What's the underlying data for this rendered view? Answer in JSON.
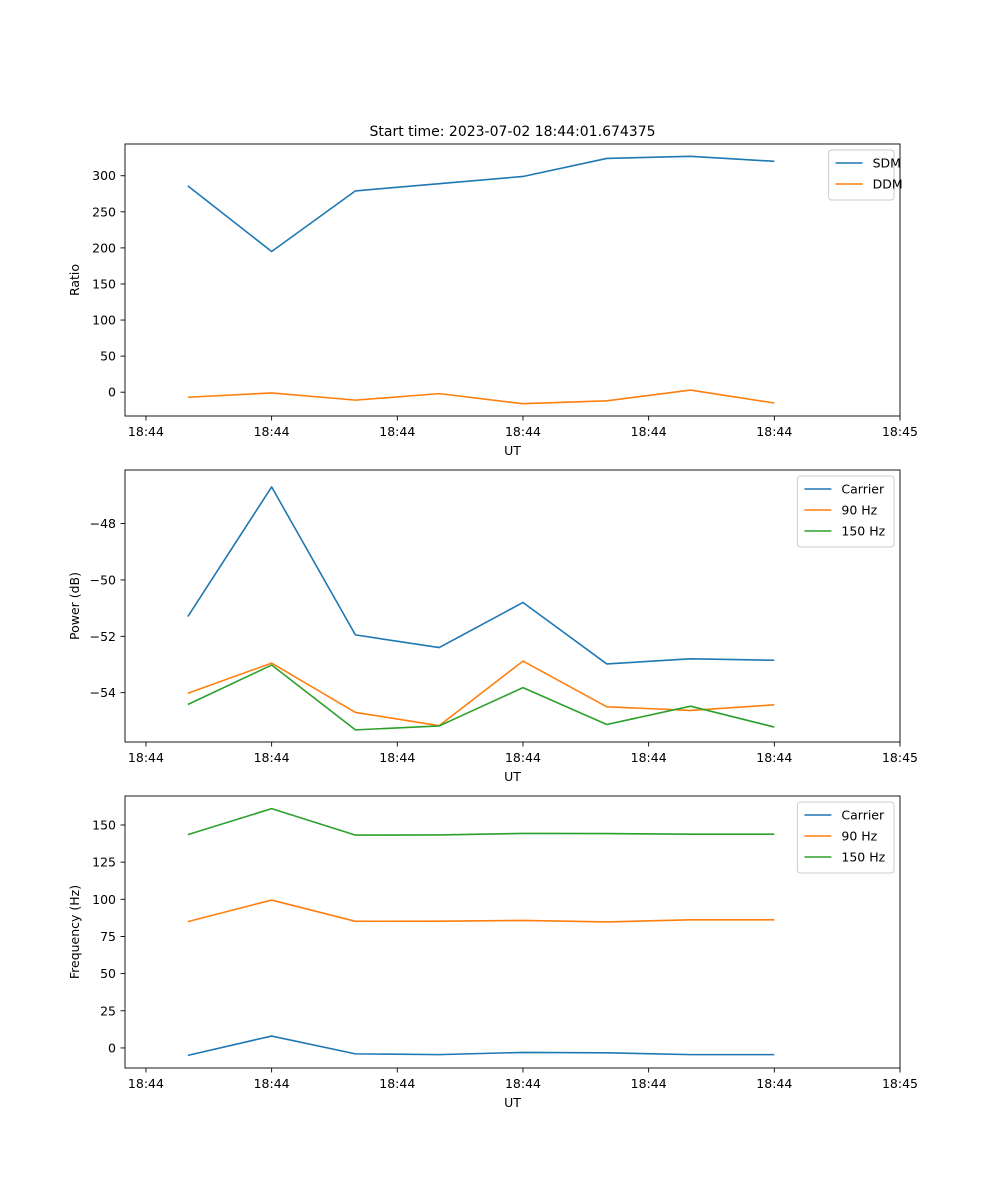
{
  "figure": {
    "title": "Start time: 2023-07-02 18:44:01.674375"
  },
  "chart_data": [
    {
      "type": "line",
      "title": "Start time: 2023-07-02 18:44:01.674375",
      "xlabel": "UT",
      "ylabel": "Ratio",
      "xlim": [
        -0.75,
        8.5
      ],
      "ylim": [
        -33,
        344
      ],
      "x_ticks": [
        -0.5,
        1,
        2.5,
        4,
        5.5,
        7,
        8.5
      ],
      "x_tick_labels": [
        "18:44",
        "18:44",
        "18:44",
        "18:44",
        "18:44",
        "18:44",
        "18:45"
      ],
      "y_ticks": [
        0,
        50,
        100,
        150,
        200,
        250,
        300
      ],
      "y_tick_labels": [
        "0",
        "50",
        "100",
        "150",
        "200",
        "250",
        "300"
      ],
      "legend": "top-right",
      "x": [
        0,
        1,
        2,
        3,
        4,
        5,
        6,
        7
      ],
      "series": [
        {
          "name": "SDM",
          "color": "#1f77b4",
          "values": [
            286,
            195,
            279,
            289,
            299,
            324,
            327,
            320
          ]
        },
        {
          "name": "DDM",
          "color": "#ff7f0e",
          "values": [
            -7,
            -1,
            -11,
            -2,
            -16,
            -12,
            3,
            -15
          ]
        }
      ]
    },
    {
      "type": "line",
      "title": "",
      "xlabel": "UT",
      "ylabel": "Power (dB)",
      "xlim": [
        -0.75,
        8.5
      ],
      "ylim": [
        -55.75,
        -46.1
      ],
      "x_ticks": [
        -0.5,
        1,
        2.5,
        4,
        5.5,
        7,
        8.5
      ],
      "x_tick_labels": [
        "18:44",
        "18:44",
        "18:44",
        "18:44",
        "18:44",
        "18:44",
        "18:45"
      ],
      "y_ticks": [
        -54,
        -52,
        -50,
        -48
      ],
      "y_tick_labels": [
        "−54",
        "−52",
        "−50",
        "−48"
      ],
      "legend": "top-right",
      "x": [
        0,
        1,
        2,
        3,
        4,
        5,
        6,
        7
      ],
      "series": [
        {
          "name": "Carrier",
          "color": "#1f77b4",
          "values": [
            -51.3,
            -46.7,
            -51.95,
            -52.4,
            -50.8,
            -52.98,
            -52.8,
            -52.85
          ]
        },
        {
          "name": "90 Hz",
          "color": "#ff7f0e",
          "values": [
            -54.02,
            -52.95,
            -54.7,
            -55.17,
            -52.88,
            -54.5,
            -54.63,
            -54.43
          ]
        },
        {
          "name": "150 Hz",
          "color": "#2ca02c",
          "values": [
            -54.42,
            -53.02,
            -55.32,
            -55.18,
            -53.82,
            -55.13,
            -54.48,
            -55.22
          ]
        }
      ]
    },
    {
      "type": "line",
      "title": "",
      "xlabel": "UT",
      "ylabel": "Frequency (Hz)",
      "xlim": [
        -0.75,
        8.5
      ],
      "ylim": [
        -13.5,
        169.5
      ],
      "x_ticks": [
        -0.5,
        1,
        2.5,
        4,
        5.5,
        7,
        8.5
      ],
      "x_tick_labels": [
        "18:44",
        "18:44",
        "18:44",
        "18:44",
        "18:44",
        "18:44",
        "18:45"
      ],
      "y_ticks": [
        0,
        25,
        50,
        75,
        100,
        125,
        150
      ],
      "y_tick_labels": [
        "0",
        "25",
        "50",
        "75",
        "100",
        "125",
        "150"
      ],
      "legend": "top-right",
      "x": [
        0,
        1,
        2,
        3,
        4,
        5,
        6,
        7
      ],
      "series": [
        {
          "name": "Carrier",
          "color": "#1f77b4",
          "values": [
            -5,
            8,
            -4,
            -4.5,
            -3,
            -3.3,
            -4.5,
            -4.5
          ]
        },
        {
          "name": "90 Hz",
          "color": "#ff7f0e",
          "values": [
            85,
            99.5,
            85.2,
            85.3,
            85.8,
            84.8,
            86.2,
            86.2
          ]
        },
        {
          "name": "150 Hz",
          "color": "#2ca02c",
          "values": [
            143.5,
            161,
            143.2,
            143.3,
            144.3,
            144.2,
            143.8,
            143.8
          ]
        }
      ]
    }
  ]
}
